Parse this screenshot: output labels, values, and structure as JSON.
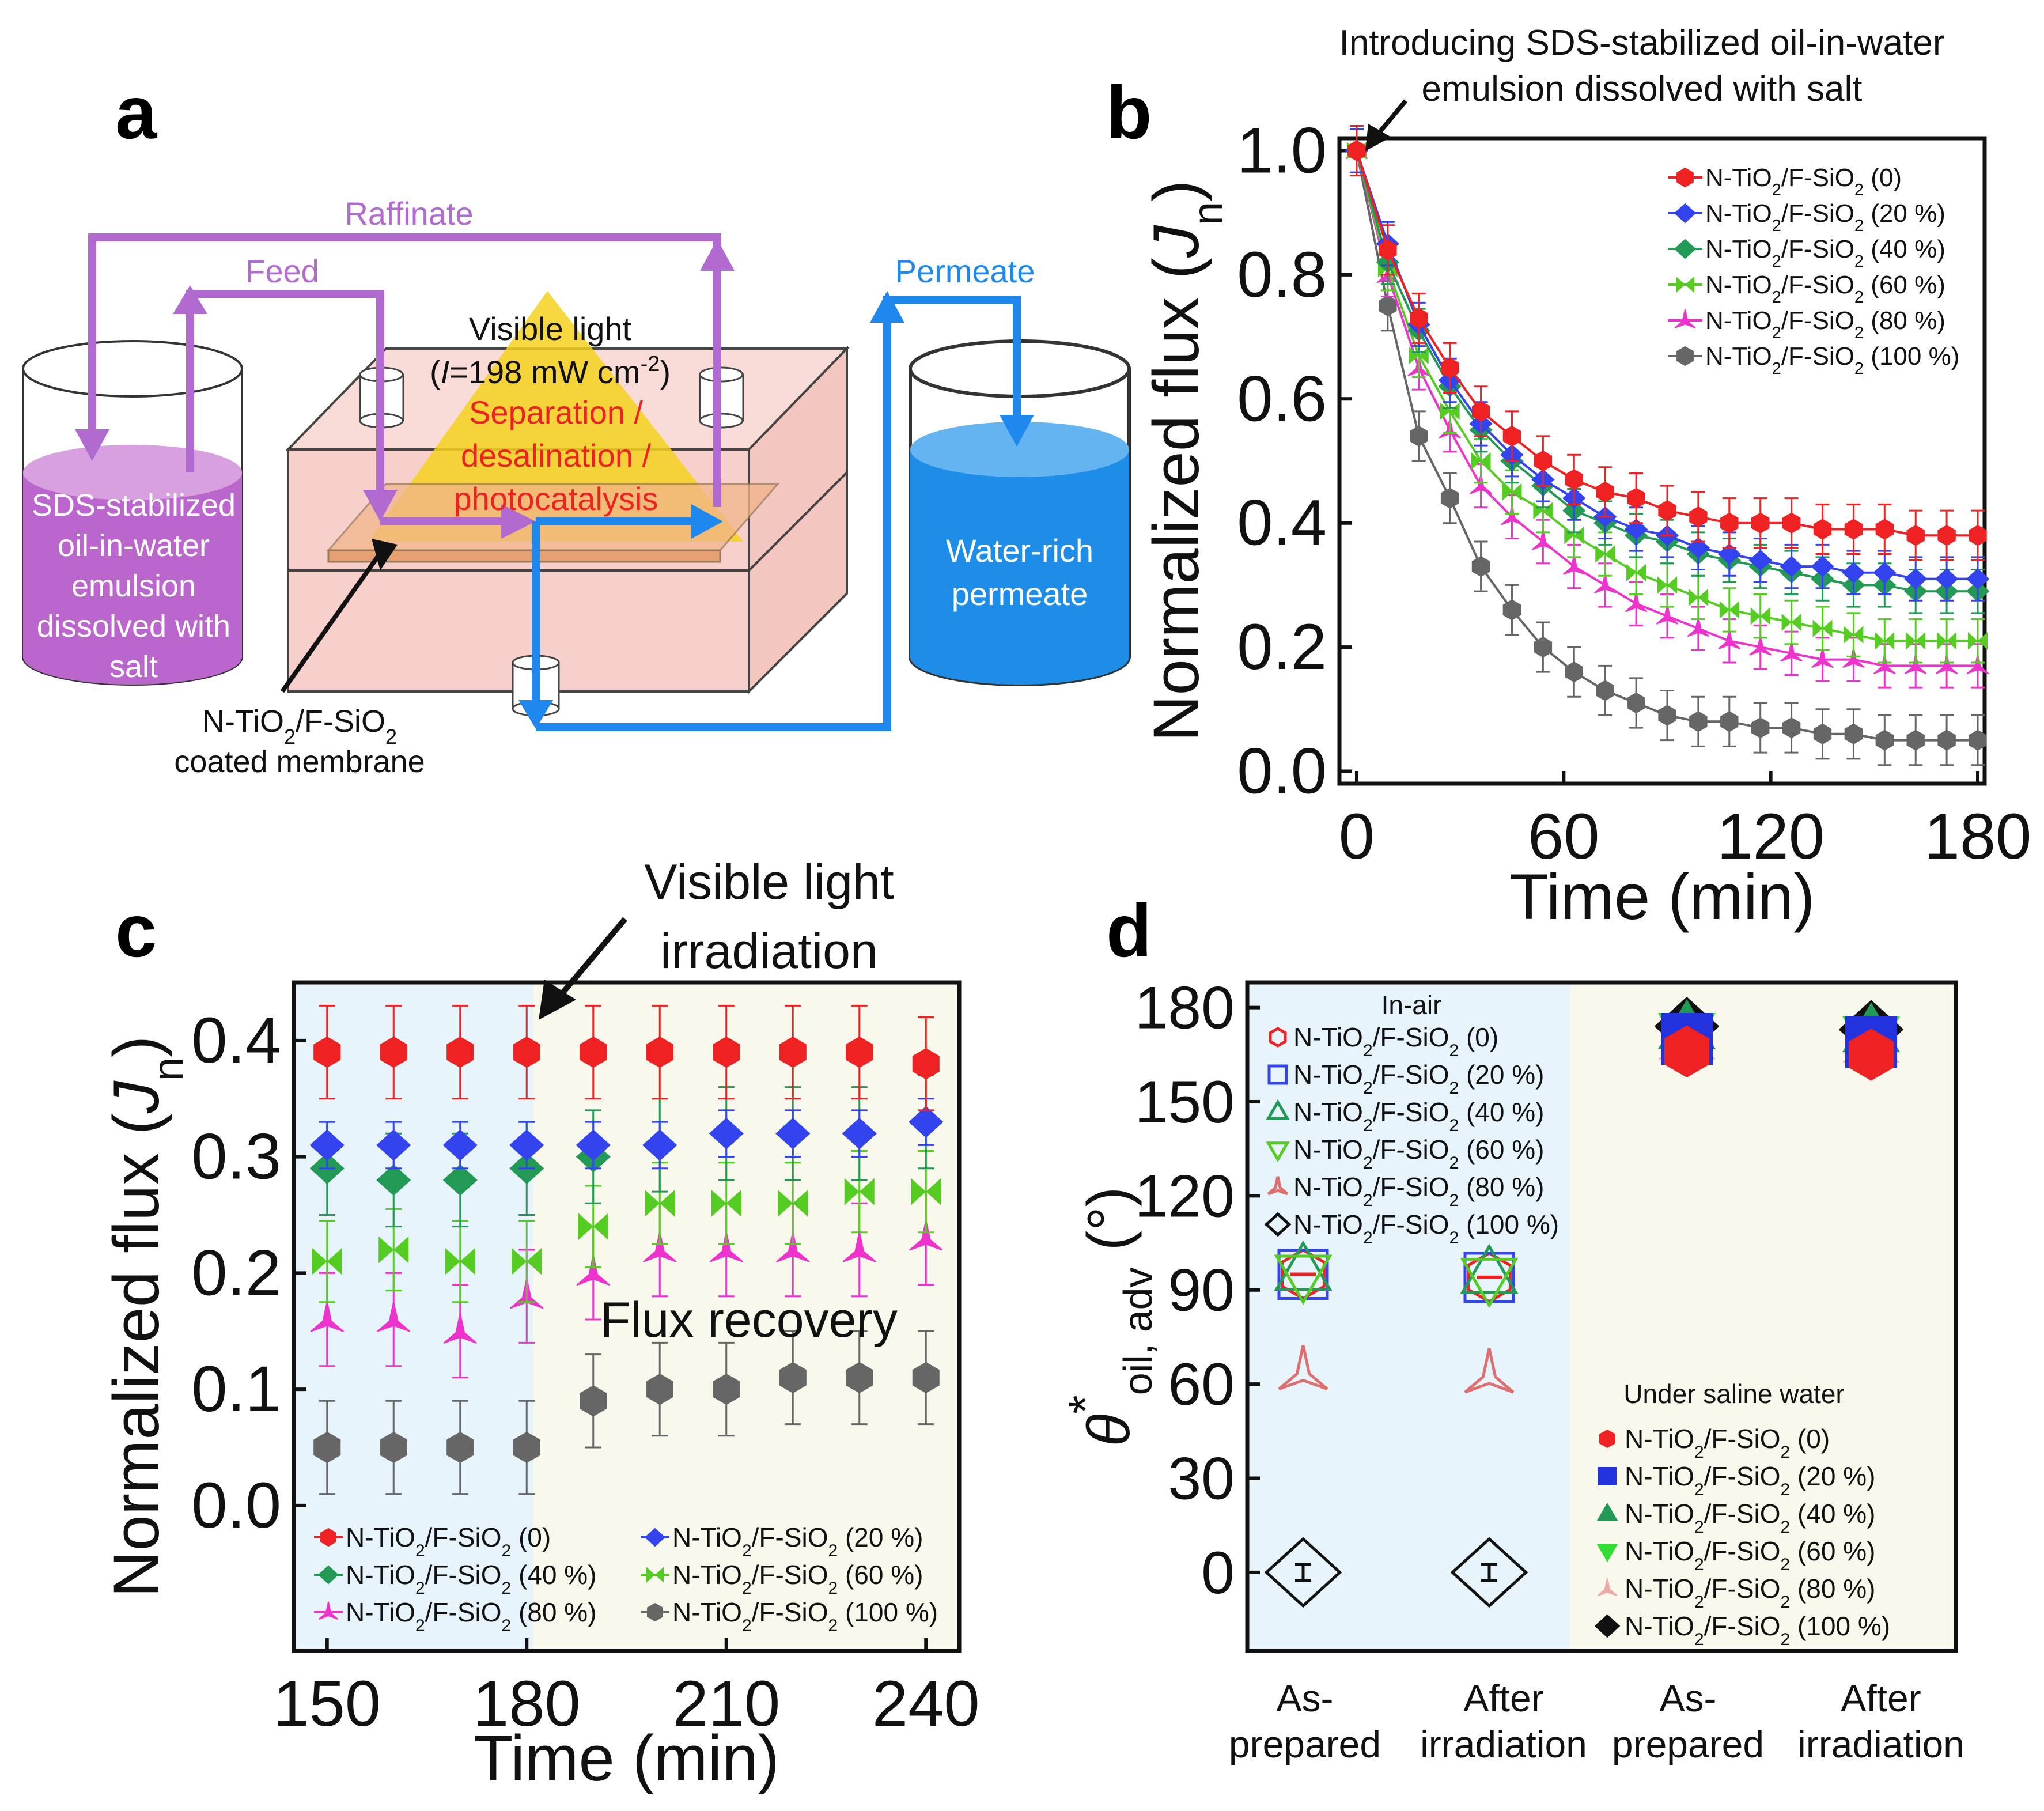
{
  "panel_labels": {
    "a": "a",
    "b": "b",
    "c": "c",
    "d": "d"
  },
  "colors": {
    "red": "#ee2222",
    "blue": "#3344ee",
    "green": "#229955",
    "lightgreen": "#55cc22",
    "magenta": "#ee33cc",
    "gray": "#666666",
    "purple": "#b06ad0",
    "arrowblue": "#1e88ee",
    "water": "#1e8de8",
    "box": "#f7d0cc",
    "light_yellow": "#f4d21e",
    "bg_blue": "#e7f4fb",
    "bg_cream": "#f8f8ec"
  },
  "diagram": {
    "raffinate": "Raffinate",
    "feed": "Feed",
    "permeate": "Permeate",
    "light_line1": "Visible light",
    "light_line2_prefix": "(",
    "light_line2_italic": "I",
    "light_line2_mid": "=198 mW cm",
    "light_line2_sup": "-2",
    "light_line2_suffix": ")",
    "process": [
      "Separation /",
      "desalination /",
      "photocatalysis"
    ],
    "feed_tank": [
      "SDS-stabilized",
      "oil-in-water",
      "emulsion",
      "dissolved with",
      "salt"
    ],
    "permeate_tank": [
      "Water-rich",
      "permeate"
    ],
    "membrane_line1": "N-TiO",
    "membrane_line1_sub": "2",
    "membrane_line1_mid": "/F-SiO",
    "membrane_line1_sub2": "2",
    "membrane_line2": "coated membrane"
  },
  "chart_data": [
    {
      "panel": "b",
      "type": "line",
      "title": "",
      "annotation": [
        "Introducing SDS-stabilized oil-in-water",
        "emulsion dissolved with salt"
      ],
      "xlabel": "Time (min)",
      "ylabel_prefix": "Normalized flux (",
      "ylabel_italic": "J",
      "ylabel_sub": "n",
      "ylabel_suffix": ")",
      "xlim": [
        -5,
        182
      ],
      "ylim": [
        -0.02,
        1.02
      ],
      "xticks": [
        0,
        60,
        120,
        180
      ],
      "yticks": [
        0.0,
        0.2,
        0.4,
        0.6,
        0.8,
        1.0
      ],
      "xtick_labels": [
        "0",
        "60",
        "120",
        "180"
      ],
      "ytick_labels": [
        "0.0",
        "0.2",
        "0.4",
        "0.6",
        "0.8",
        "1.0"
      ],
      "x": [
        0,
        9,
        18,
        27,
        36,
        45,
        54,
        63,
        72,
        81,
        90,
        99,
        108,
        117,
        126,
        135,
        144,
        153,
        162,
        171,
        180
      ],
      "series": [
        {
          "name": "N-TiO2/F-SiO2 (0)",
          "legend": [
            "N-TiO",
            "2",
            "/F-SiO",
            "2",
            " (0)"
          ],
          "color": "#ee2222",
          "marker": "hexagon",
          "values": [
            1.0,
            0.84,
            0.73,
            0.65,
            0.58,
            0.54,
            0.5,
            0.47,
            0.45,
            0.44,
            0.42,
            0.41,
            0.4,
            0.4,
            0.4,
            0.39,
            0.39,
            0.39,
            0.38,
            0.38,
            0.38
          ],
          "err": 0.04
        },
        {
          "name": "N-TiO2/F-SiO2 (20 %)",
          "legend": [
            "N-TiO",
            "2",
            "/F-SiO",
            "2",
            " (20 %)"
          ],
          "color": "#3344ee",
          "marker": "diamond",
          "values": [
            1.0,
            0.85,
            0.72,
            0.63,
            0.56,
            0.51,
            0.47,
            0.44,
            0.41,
            0.39,
            0.38,
            0.36,
            0.35,
            0.34,
            0.33,
            0.33,
            0.32,
            0.32,
            0.31,
            0.31,
            0.31
          ],
          "err": 0.035
        },
        {
          "name": "N-TiO2/F-SiO2 (40 %)",
          "legend": [
            "N-TiO",
            "2",
            "/F-SiO",
            "2",
            " (40 %)"
          ],
          "color": "#229955",
          "marker": "diamond",
          "values": [
            1.0,
            0.82,
            0.71,
            0.62,
            0.55,
            0.5,
            0.46,
            0.42,
            0.4,
            0.38,
            0.37,
            0.35,
            0.34,
            0.33,
            0.32,
            0.31,
            0.3,
            0.3,
            0.29,
            0.29,
            0.29
          ],
          "err": 0.035
        },
        {
          "name": "N-TiO2/F-SiO2 (60 %)",
          "legend": [
            "N-TiO",
            "2",
            "/F-SiO",
            "2",
            " (60 %)"
          ],
          "color": "#55cc22",
          "marker": "bowtie",
          "values": [
            1.0,
            0.81,
            0.67,
            0.58,
            0.5,
            0.45,
            0.42,
            0.38,
            0.35,
            0.32,
            0.3,
            0.28,
            0.26,
            0.25,
            0.24,
            0.23,
            0.22,
            0.21,
            0.21,
            0.21,
            0.21
          ],
          "err": 0.035
        },
        {
          "name": "N-TiO2/F-SiO2 (80 %)",
          "legend": [
            "N-TiO",
            "2",
            "/F-SiO",
            "2",
            " (80 %)"
          ],
          "color": "#ee33cc",
          "marker": "tristar",
          "values": [
            1.0,
            0.8,
            0.65,
            0.55,
            0.46,
            0.41,
            0.37,
            0.33,
            0.3,
            0.27,
            0.25,
            0.23,
            0.21,
            0.2,
            0.19,
            0.18,
            0.18,
            0.17,
            0.17,
            0.17,
            0.17
          ],
          "err": 0.035
        },
        {
          "name": "N-TiO2/F-SiO2 (100 %)",
          "legend": [
            "N-TiO",
            "2",
            "/F-SiO",
            "2",
            " (100 %)"
          ],
          "color": "#666666",
          "marker": "hexagon",
          "values": [
            1.0,
            0.75,
            0.54,
            0.44,
            0.33,
            0.26,
            0.2,
            0.16,
            0.13,
            0.11,
            0.09,
            0.08,
            0.08,
            0.07,
            0.07,
            0.06,
            0.06,
            0.05,
            0.05,
            0.05,
            0.05
          ],
          "err": 0.04
        }
      ]
    },
    {
      "panel": "c",
      "type": "scatter",
      "annotation": [
        "Visible light",
        "irradiation"
      ],
      "region_label": "Flux recovery",
      "xlabel": "Time (min)",
      "ylabel_prefix": "Normalized flux (",
      "ylabel_italic": "J",
      "ylabel_sub": "n",
      "ylabel_suffix": ")",
      "xlim": [
        145,
        245
      ],
      "ylim": [
        -0.125,
        0.45
      ],
      "irradiation_start": 181,
      "xticks": [
        150,
        180,
        210,
        240
      ],
      "yticks": [
        0.0,
        0.1,
        0.2,
        0.3,
        0.4
      ],
      "xtick_labels": [
        "150",
        "180",
        "210",
        "240"
      ],
      "ytick_labels": [
        "0.0",
        "0.1",
        "0.2",
        "0.3",
        "0.4"
      ],
      "x": [
        150,
        160,
        170,
        180,
        190,
        200,
        210,
        220,
        230,
        240
      ],
      "series": [
        {
          "name": "N-TiO2/F-SiO2 (0)",
          "legend": [
            "N-TiO",
            "2",
            "/F-SiO",
            "2",
            " (0)"
          ],
          "color": "#ee2222",
          "marker": "hexagon",
          "values": [
            0.39,
            0.39,
            0.39,
            0.39,
            0.39,
            0.39,
            0.39,
            0.39,
            0.39,
            0.38
          ],
          "err": 0.04
        },
        {
          "name": "N-TiO2/F-SiO2 (20 %)",
          "legend": [
            "N-TiO",
            "2",
            "/F-SiO",
            "2",
            " (20 %)"
          ],
          "color": "#3344ee",
          "marker": "diamond",
          "values": [
            0.31,
            0.31,
            0.31,
            0.31,
            0.31,
            0.31,
            0.32,
            0.32,
            0.32,
            0.33
          ],
          "err": 0.02
        },
        {
          "name": "N-TiO2/F-SiO2 (40 %)",
          "legend": [
            "N-TiO",
            "2",
            "/F-SiO",
            "2",
            " (40 %)"
          ],
          "color": "#229955",
          "marker": "diamond",
          "values": [
            0.29,
            0.28,
            0.28,
            0.29,
            0.3,
            0.31,
            0.32,
            0.32,
            0.32,
            0.33
          ],
          "err": 0.04
        },
        {
          "name": "N-TiO2/F-SiO2 (60 %)",
          "legend": [
            "N-TiO",
            "2",
            "/F-SiO",
            "2",
            " (60 %)"
          ],
          "color": "#55cc22",
          "marker": "bowtie",
          "values": [
            0.21,
            0.22,
            0.21,
            0.21,
            0.24,
            0.26,
            0.26,
            0.26,
            0.27,
            0.27
          ],
          "err": 0.035
        },
        {
          "name": "N-TiO2/F-SiO2 (80 %)",
          "legend": [
            "N-TiO",
            "2",
            "/F-SiO",
            "2",
            " (80 %)"
          ],
          "color": "#ee33cc",
          "marker": "tristar",
          "values": [
            0.16,
            0.16,
            0.15,
            0.18,
            0.2,
            0.22,
            0.22,
            0.22,
            0.22,
            0.23
          ],
          "err": 0.04
        },
        {
          "name": "N-TiO2/F-SiO2 (100 %)",
          "legend": [
            "N-TiO",
            "2",
            "/F-SiO",
            "2",
            " (100 %)"
          ],
          "color": "#666666",
          "marker": "hexagon",
          "values": [
            0.05,
            0.05,
            0.05,
            0.05,
            0.09,
            0.1,
            0.1,
            0.11,
            0.11,
            0.11
          ],
          "err": 0.04
        }
      ]
    },
    {
      "panel": "d",
      "type": "scatter",
      "ylabel_prefix": "θ",
      "ylabel_sup": "*",
      "ylabel_sub": "oil, adv",
      "ylabel_suffix": " (°)",
      "ylim": [
        -25,
        188
      ],
      "yticks": [
        0,
        30,
        60,
        90,
        120,
        150,
        180
      ],
      "ytick_labels": [
        "0",
        "30",
        "60",
        "90",
        "120",
        "150",
        "180"
      ],
      "categories": [
        "As- prepared",
        "After irradiation",
        "As- prepared",
        "After irradiation"
      ],
      "category_lines": [
        [
          "As-",
          "prepared"
        ],
        [
          "After",
          "irradiation"
        ],
        [
          "As-",
          "prepared"
        ],
        [
          "After",
          "irradiation"
        ]
      ],
      "in_air_title": "In-air",
      "saline_title": "Under saline water",
      "in_air": [
        {
          "name": "N-TiO2/F-SiO2 (0)",
          "legend": [
            "N-TiO",
            "2",
            "/F-SiO",
            "2",
            " (0)"
          ],
          "color": "#ee2222",
          "marker": "hexagon-open",
          "values": [
            95,
            94
          ]
        },
        {
          "name": "N-TiO2/F-SiO2 (20 %)",
          "legend": [
            "N-TiO",
            "2",
            "/F-SiO",
            "2",
            " (20 %)"
          ],
          "color": "#3344ee",
          "marker": "square-open",
          "values": [
            95,
            94
          ]
        },
        {
          "name": "N-TiO2/F-SiO2 (40 %)",
          "legend": [
            "N-TiO",
            "2",
            "/F-SiO",
            "2",
            " (40 %)"
          ],
          "color": "#229955",
          "marker": "triangle-up-open",
          "values": [
            96,
            95
          ]
        },
        {
          "name": "N-TiO2/F-SiO2 (60 %)",
          "legend": [
            "N-TiO",
            "2",
            "/F-SiO",
            "2",
            " (60 %)"
          ],
          "color": "#55cc22",
          "marker": "triangle-down-open",
          "values": [
            95,
            94
          ]
        },
        {
          "name": "N-TiO2/F-SiO2 (80 %)",
          "legend": [
            "N-TiO",
            "2",
            "/F-SiO",
            "2",
            " (80 %)"
          ],
          "color": "#dd6f6f",
          "marker": "tristar-open",
          "values": [
            64,
            63
          ]
        },
        {
          "name": "N-TiO2/F-SiO2 (100 %)",
          "legend": [
            "N-TiO",
            "2",
            "/F-SiO",
            "2",
            " (100 %)"
          ],
          "color": "#111111",
          "marker": "diamond-open",
          "values": [
            0,
            0
          ]
        }
      ],
      "under_saline": [
        {
          "name": "N-TiO2/F-SiO2 (0)",
          "legend": [
            "N-TiO",
            "2",
            "/F-SiO",
            "2",
            " (0)"
          ],
          "color": "#ee2222",
          "marker": "hexagon",
          "values": [
            166,
            165
          ]
        },
        {
          "name": "N-TiO2/F-SiO2 (20 %)",
          "legend": [
            "N-TiO",
            "2",
            "/F-SiO",
            "2",
            " (20 %)"
          ],
          "color": "#2233dd",
          "marker": "square",
          "values": [
            170,
            169
          ]
        },
        {
          "name": "N-TiO2/F-SiO2 (40 %)",
          "legend": [
            "N-TiO",
            "2",
            "/F-SiO",
            "2",
            " (40 %)"
          ],
          "color": "#229955",
          "marker": "triangle-up",
          "values": [
            173,
            172
          ]
        },
        {
          "name": "N-TiO2/F-SiO2 (60 %)",
          "legend": [
            "N-TiO",
            "2",
            "/F-SiO",
            "2",
            " (60 %)"
          ],
          "color": "#33dd33",
          "marker": "triangle-down",
          "values": [
            172,
            171
          ]
        },
        {
          "name": "N-TiO2/F-SiO2 (80 %)",
          "legend": [
            "N-TiO",
            "2",
            "/F-SiO",
            "2",
            " (80 %)"
          ],
          "color": "#f0a8a8",
          "marker": "tristar",
          "values": [
            170,
            169
          ]
        },
        {
          "name": "N-TiO2/F-SiO2 (100 %)",
          "legend": [
            "N-TiO",
            "2",
            "/F-SiO",
            "2",
            " (100 %)"
          ],
          "color": "#111111",
          "marker": "diamond",
          "values": [
            174,
            173
          ]
        }
      ]
    }
  ]
}
